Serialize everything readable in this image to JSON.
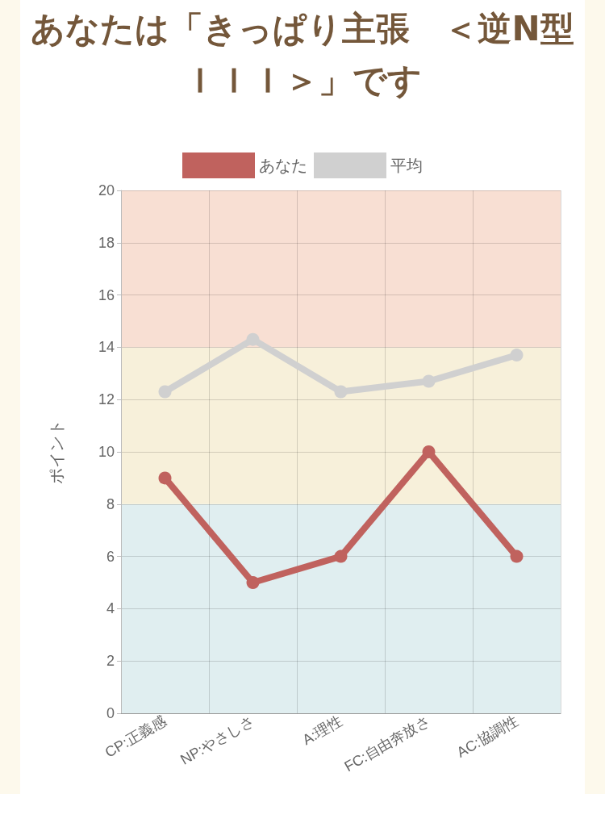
{
  "chart_data": {
    "type": "line",
    "title": "あなたは「きっぱり主張　＜逆N型ＩＩＩ＞」です",
    "ylabel": "ポイント",
    "categories": [
      "CP:正義感",
      "NP:やさしさ",
      "A:理性",
      "FC:自由奔放さ",
      "AC:協調性"
    ],
    "series": [
      {
        "name": "あなた",
        "color": "#c0625e",
        "values": [
          9,
          5,
          6,
          10,
          6
        ]
      },
      {
        "name": "平均",
        "color": "#d0d0d0",
        "values": [
          12.3,
          14.3,
          12.3,
          12.7,
          13.7
        ]
      }
    ],
    "ylim": [
      0,
      20
    ],
    "yticks": [
      0,
      2,
      4,
      6,
      8,
      10,
      12,
      14,
      16,
      18,
      20
    ],
    "bands": [
      {
        "axis": "y",
        "from": 0,
        "to": 8,
        "color": "#e0eef0"
      },
      {
        "axis": "y",
        "from": 8,
        "to": 14,
        "color": "#f7f0da"
      },
      {
        "axis": "y",
        "from": 14,
        "to": 20,
        "color": "#f8dfd3"
      }
    ],
    "grid": true,
    "legend": "top",
    "marker": "circle",
    "line_style": "solid"
  }
}
